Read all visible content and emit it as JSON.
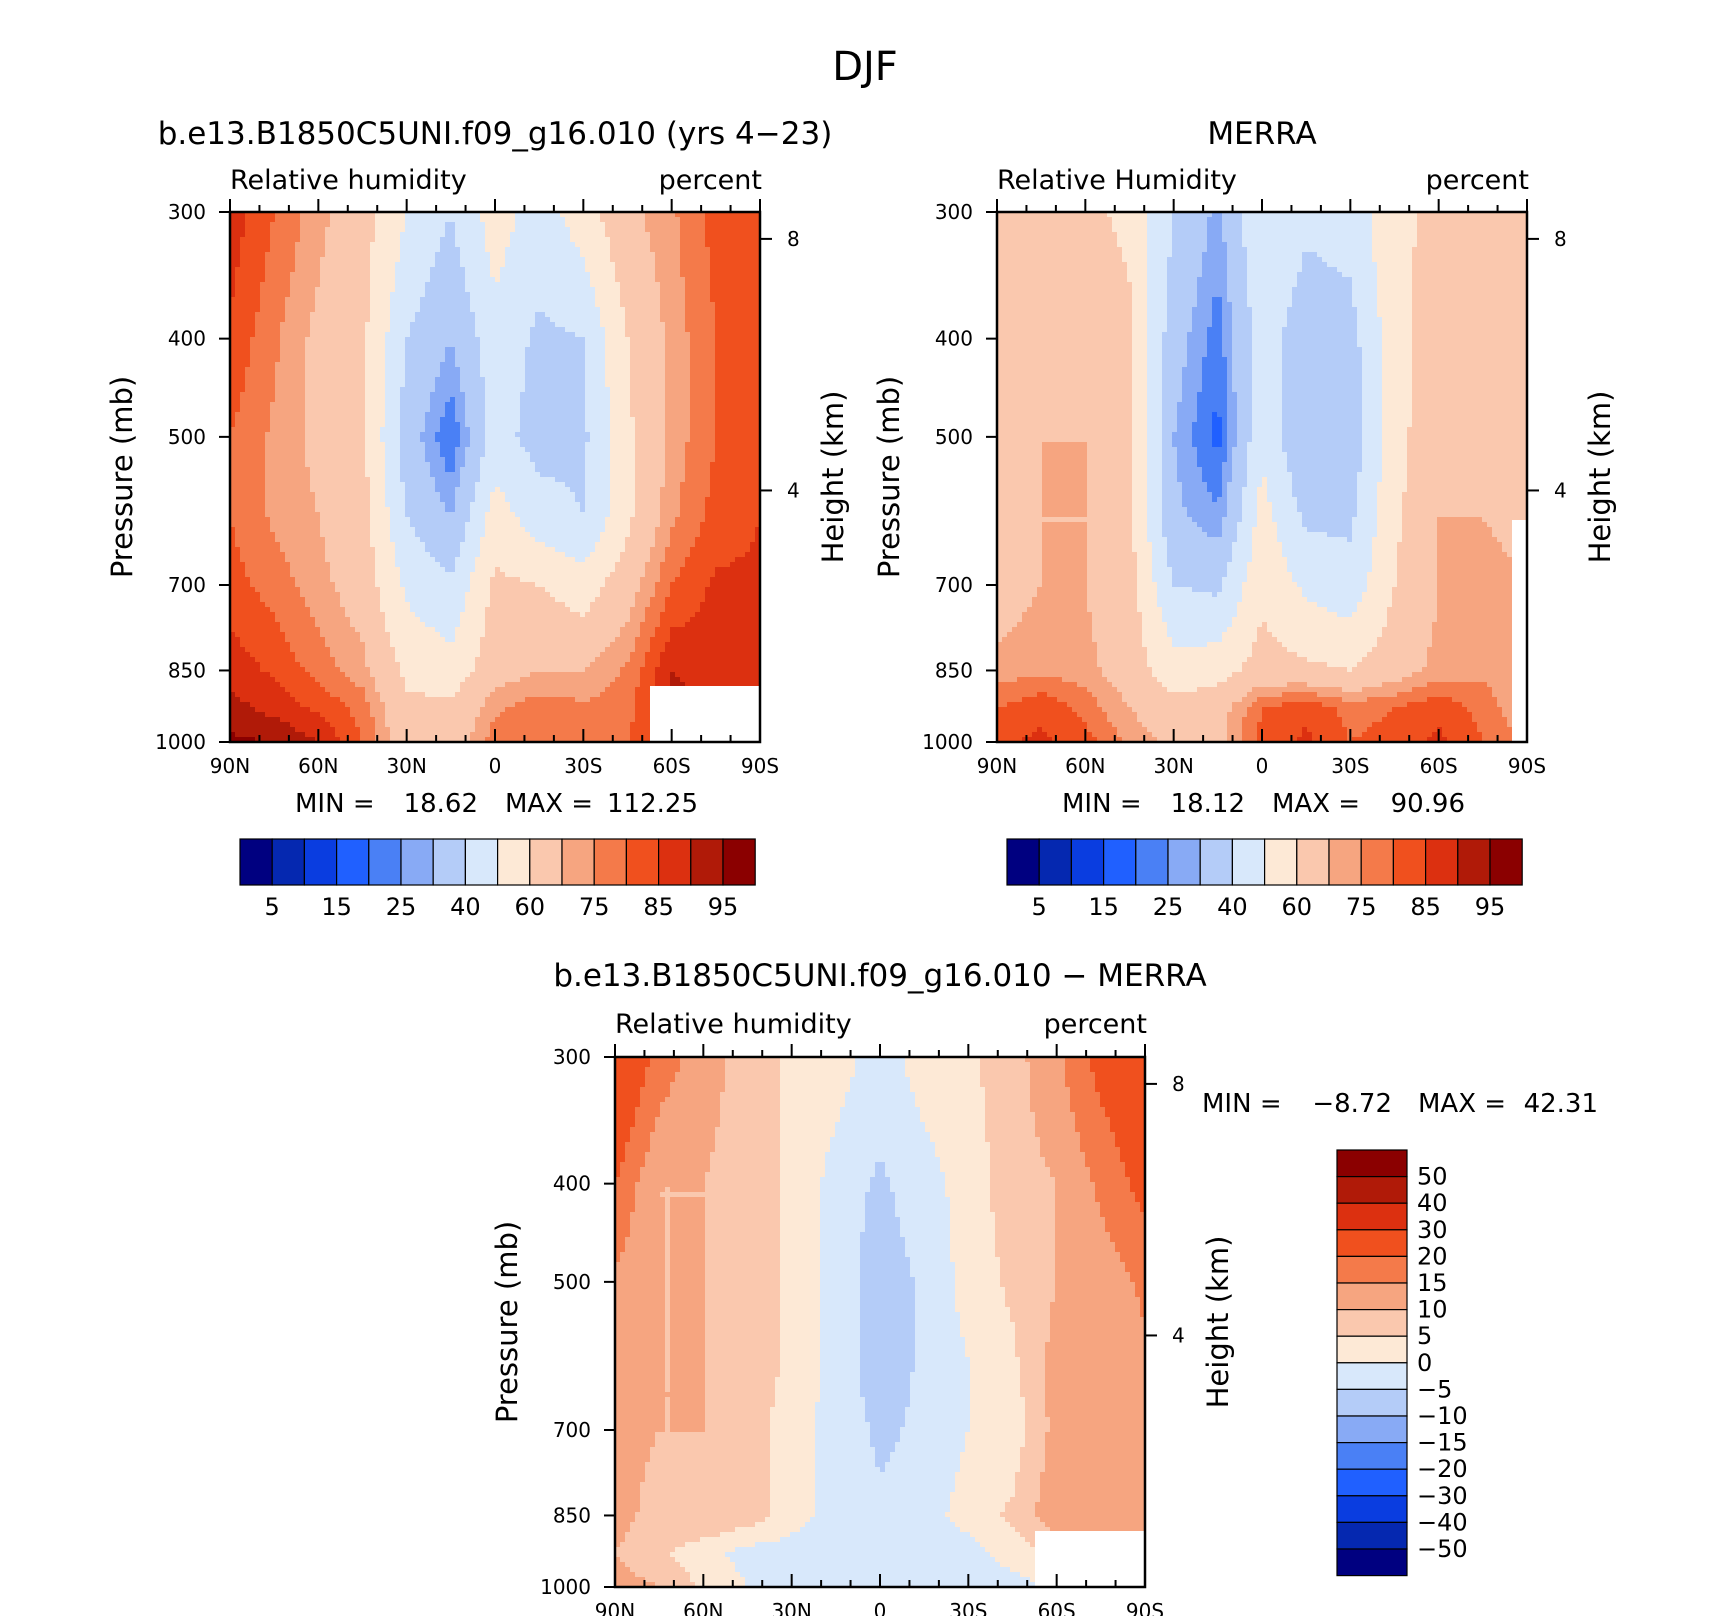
{
  "figure": {
    "title": "DJF"
  },
  "colors": {
    "full_scale": [
      "#000080",
      "#0528b0",
      "#0a3de0",
      "#2060ff",
      "#4a80f5",
      "#88aaf5",
      "#b4ccf8",
      "#d8e8fb",
      "#fde9d6",
      "#fac8ae",
      "#f6a580",
      "#f47a4a",
      "#f0501e",
      "#dc3010",
      "#b01a08",
      "#8b0000"
    ],
    "diff_scale": [
      "#000080",
      "#0528b0",
      "#0a3de0",
      "#2060ff",
      "#4a80f5",
      "#88aaf5",
      "#b4ccf8",
      "#d8e8fb",
      "#fde9d6",
      "#fac8ae",
      "#f6a580",
      "#f47a4a",
      "#f0501e",
      "#dc3010",
      "#b01a08",
      "#8b0000"
    ]
  },
  "panels": {
    "model": {
      "title": "b.e13.B1850C5UNI.f09_g16.010 (yrs 4−23)",
      "left_label": "Relative humidity",
      "right_label": "percent",
      "ylabel": "Pressure (mb)",
      "ylabel_right": "Height (km)",
      "min_label": "MIN =",
      "min_value": "18.62",
      "max_label": "MAX =",
      "max_value": "112.25"
    },
    "obs": {
      "title": "MERRA",
      "left_label": "Relative Humidity",
      "right_label": "percent",
      "ylabel": "Pressure (mb)",
      "ylabel_right": "Height (km)",
      "min_label": "MIN =",
      "min_value": "18.12",
      "max_label": "MAX =",
      "max_value": "90.96"
    },
    "diff": {
      "title": "b.e13.B1850C5UNI.f09_g16.010 − MERRA",
      "left_label": "Relative humidity",
      "right_label": "percent",
      "ylabel": "Pressure (mb)",
      "ylabel_right": "Height (km)",
      "min_label": "MIN =",
      "min_value": "−8.72",
      "max_label": "MAX =",
      "max_value": "42.31"
    }
  },
  "chart_data": [
    {
      "type": "heatmap",
      "title": "b.e13.B1850C5UNI.f09_g16.010 (yrs 4−23)",
      "variable": "Relative humidity",
      "units": "percent",
      "xlabel": "",
      "ylabel": "Pressure (mb)",
      "ylabel_right": "Height (km)",
      "x_ticks": [
        "90N",
        "60N",
        "30N",
        "0",
        "30S",
        "60S",
        "90S"
      ],
      "y_ticks": [
        300,
        400,
        500,
        700,
        850,
        1000
      ],
      "y_ticks_right": [
        4,
        8
      ],
      "min": 18.62,
      "max": 112.25,
      "colorbar_labels": [
        "5",
        "15",
        "25",
        "40",
        "60",
        "75",
        "85",
        "95"
      ],
      "latitudes": [
        90,
        75,
        60,
        45,
        30,
        15,
        0,
        -15,
        -30,
        -45,
        -60,
        -75,
        -90
      ],
      "pressures": [
        300,
        400,
        500,
        600,
        700,
        850,
        925,
        1000
      ],
      "values": [
        [
          88,
          80,
          72,
          64,
          50,
          40,
          55,
          45,
          55,
          68,
          74,
          82,
          85
        ],
        [
          84,
          76,
          68,
          62,
          40,
          30,
          46,
          38,
          40,
          60,
          72,
          80,
          84
        ],
        [
          80,
          74,
          68,
          62,
          35,
          20,
          44,
          36,
          38,
          58,
          72,
          80,
          84
        ],
        [
          80,
          74,
          70,
          64,
          40,
          30,
          55,
          45,
          40,
          58,
          74,
          82,
          85
        ],
        [
          82,
          78,
          72,
          66,
          48,
          42,
          62,
          60,
          55,
          66,
          80,
          86,
          86
        ],
        [
          88,
          84,
          78,
          72,
          58,
          54,
          66,
          70,
          70,
          76,
          90,
          88,
          86
        ],
        [
          92,
          88,
          84,
          78,
          62,
          62,
          74,
          78,
          76,
          78,
          92,
          88,
          86
        ],
        [
          96,
          95,
          90,
          80,
          64,
          64,
          78,
          80,
          78,
          80,
          86,
          85,
          84
        ]
      ]
    },
    {
      "type": "heatmap",
      "title": "MERRA",
      "variable": "Relative Humidity",
      "units": "percent",
      "xlabel": "",
      "ylabel": "Pressure (mb)",
      "ylabel_right": "Height (km)",
      "x_ticks": [
        "90N",
        "60N",
        "30N",
        "0",
        "30S",
        "60S",
        "90S"
      ],
      "y_ticks": [
        300,
        400,
        500,
        700,
        850,
        1000
      ],
      "y_ticks_right": [
        4,
        8
      ],
      "min": 18.12,
      "max": 90.96,
      "colorbar_labels": [
        "5",
        "15",
        "25",
        "40",
        "60",
        "75",
        "85",
        "95"
      ],
      "latitudes": [
        90,
        75,
        60,
        45,
        30,
        15,
        0,
        -15,
        -30,
        -45,
        -60,
        -75,
        -90
      ],
      "pressures": [
        300,
        400,
        500,
        600,
        700,
        850,
        925,
        1000
      ],
      "values": [
        [
          60,
          62,
          62,
          58,
          40,
          28,
          50,
          42,
          44,
          58,
          62,
          62,
          60
        ],
        [
          64,
          68,
          68,
          62,
          34,
          22,
          45,
          34,
          36,
          56,
          66,
          66,
          64
        ],
        [
          66,
          70,
          70,
          62,
          30,
          18,
          48,
          30,
          34,
          56,
          68,
          68,
          66
        ],
        [
          66,
          70,
          70,
          62,
          32,
          26,
          54,
          38,
          38,
          58,
          70,
          70,
          68
        ],
        [
          66,
          70,
          70,
          64,
          40,
          38,
          58,
          48,
          44,
          60,
          70,
          72,
          70
        ],
        [
          72,
          74,
          72,
          66,
          54,
          56,
          64,
          62,
          60,
          66,
          72,
          74,
          70
        ],
        [
          80,
          84,
          78,
          70,
          64,
          66,
          80,
          84,
          78,
          80,
          84,
          78,
          70
        ],
        [
          84,
          86,
          82,
          74,
          68,
          68,
          82,
          86,
          80,
          82,
          86,
          80,
          74
        ]
      ]
    },
    {
      "type": "heatmap",
      "title": "b.e13.B1850C5UNI.f09_g16.010 − MERRA",
      "variable": "Relative humidity",
      "units": "percent",
      "xlabel": "",
      "ylabel": "Pressure (mb)",
      "ylabel_right": "Height (km)",
      "x_ticks": [
        "90N",
        "60N",
        "30N",
        "0",
        "30S",
        "60S",
        "90S"
      ],
      "y_ticks": [
        300,
        400,
        500,
        700,
        850,
        1000
      ],
      "y_ticks_right": [
        4,
        8
      ],
      "min": -8.72,
      "max": 42.31,
      "colorbar_labels": [
        "50",
        "40",
        "30",
        "20",
        "15",
        "10",
        "5",
        "0",
        "−5",
        "−10",
        "−15",
        "−20",
        "−30",
        "−40",
        "−50"
      ],
      "latitudes": [
        90,
        75,
        60,
        45,
        30,
        15,
        0,
        -15,
        -30,
        -45,
        -60,
        -75,
        -90
      ],
      "pressures": [
        300,
        400,
        500,
        600,
        700,
        850,
        925,
        1000
      ],
      "values": [
        [
          28,
          18,
          12,
          8,
          4,
          2,
          -2,
          2,
          4,
          8,
          14,
          22,
          26
        ],
        [
          20,
          10,
          10,
          8,
          4,
          -2,
          -6,
          -2,
          2,
          8,
          10,
          16,
          22
        ],
        [
          14,
          10,
          10,
          8,
          4,
          -2,
          -8,
          -4,
          2,
          6,
          10,
          12,
          16
        ],
        [
          12,
          10,
          10,
          8,
          4,
          -2,
          -8,
          -4,
          0,
          4,
          12,
          12,
          14
        ],
        [
          12,
          10,
          10,
          8,
          2,
          -2,
          -6,
          -4,
          0,
          2,
          12,
          12,
          14
        ],
        [
          12,
          8,
          10,
          8,
          2,
          -2,
          -4,
          -2,
          2,
          6,
          14,
          14,
          14
        ],
        [
          10,
          6,
          2,
          -2,
          -2,
          -2,
          -4,
          -2,
          -2,
          2,
          6,
          8,
          10
        ],
        [
          12,
          10,
          4,
          0,
          -2,
          -2,
          -4,
          -2,
          -2,
          -2,
          0,
          6,
          10
        ]
      ]
    }
  ]
}
